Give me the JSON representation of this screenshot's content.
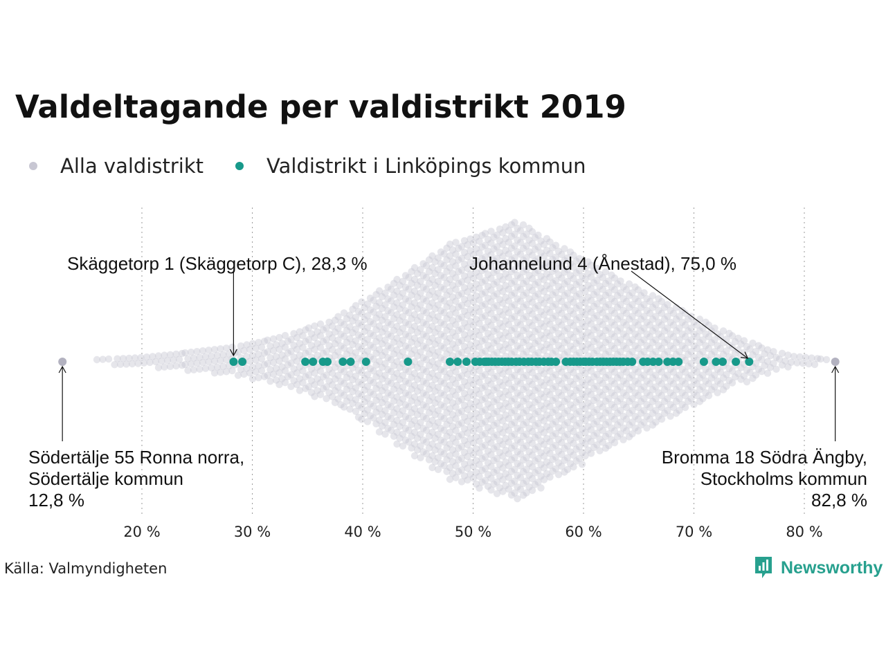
{
  "title": "Valdeltagande per valdistrikt 2019",
  "legend": [
    {
      "label": "Alla valdistrikt",
      "color": "#c8c7d3"
    },
    {
      "label": "Valdistrikt i Linköpings kommun",
      "color": "#17998a"
    }
  ],
  "source": "Källa: Valmyndigheten",
  "brand": {
    "name": "Newsworthy",
    "icon": "newsworthy-logo-icon"
  },
  "chart_data": {
    "type": "scatter",
    "subtype": "beeswarm",
    "title": "Valdeltagande per valdistrikt 2019",
    "xlim": [
      12,
      84
    ],
    "xticks": [
      20,
      30,
      40,
      50,
      60,
      70,
      80
    ],
    "tick_labels": [
      "20 %",
      "30 %",
      "40 %",
      "50 %",
      "60 %",
      "70 %",
      "80 %"
    ],
    "grid": "vertical dotted",
    "legend_position": "top-left",
    "series": [
      {
        "name": "Alla valdistrikt",
        "color": "#c8c7d3",
        "extremes": [
          12.8,
          82.8
        ]
      },
      {
        "name": "Valdistrikt i Linköpings kommun",
        "color": "#17998a",
        "x": [
          28.3,
          29.1,
          34.8,
          35.5,
          36.4,
          36.8,
          38.2,
          38.9,
          40.3,
          44.1,
          47.9,
          48.6,
          49.4,
          50.2,
          50.6,
          51.0,
          51.2,
          51.4,
          51.7,
          52.0,
          52.3,
          52.6,
          52.9,
          53.2,
          53.5,
          53.9,
          54.2,
          54.6,
          55.0,
          55.3,
          55.7,
          56.0,
          56.4,
          56.8,
          57.1,
          57.5,
          58.4,
          58.8,
          59.1,
          59.4,
          59.7,
          60.0,
          60.2,
          60.5,
          60.8,
          61.2,
          61.5,
          61.8,
          62.1,
          62.4,
          62.7,
          63.0,
          63.3,
          63.6,
          64.0,
          64.4,
          65.4,
          65.8,
          66.3,
          66.8,
          67.6,
          68.1,
          68.6,
          70.9,
          72.0,
          72.6,
          73.8,
          75.0
        ]
      }
    ],
    "annotations": [
      {
        "lines": [
          "Skäggetorp 1 (Skäggetorp C), 28,3 %"
        ],
        "value": 28.3
      },
      {
        "lines": [
          "Johannelund 4 (Ånestad), 75,0 %"
        ],
        "value": 75.0
      },
      {
        "lines": [
          "Södertälje 55 Ronna norra,",
          "Södertälje kommun",
          "12,8 %"
        ],
        "value": 12.8
      },
      {
        "lines": [
          "Bromma 18 Södra Ängby,",
          "Stockholms kommun",
          "82,8 %"
        ],
        "value": 82.8
      }
    ]
  }
}
